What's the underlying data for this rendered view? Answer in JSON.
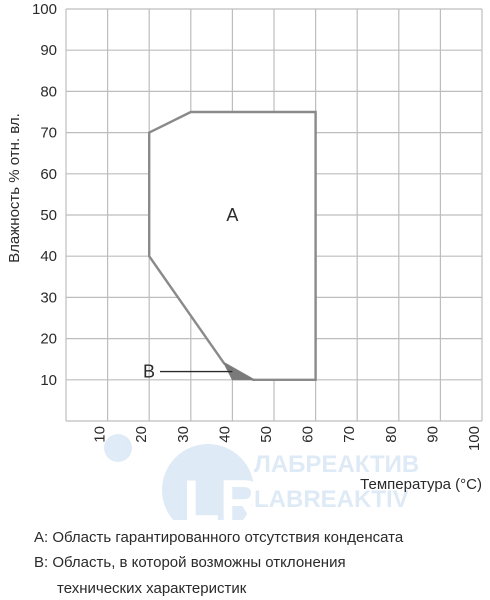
{
  "chart_data": {
    "type": "area",
    "xlabel": "Температура (°C)",
    "ylabel": "Влажность % отн. вл.",
    "xlim": [
      0,
      100
    ],
    "ylim": [
      0,
      100
    ],
    "x_ticks": [
      "10",
      "20",
      "30",
      "40",
      "50",
      "60",
      "70",
      "80",
      "90",
      "100"
    ],
    "y_ticks": [
      "10",
      "20",
      "30",
      "40",
      "50",
      "60",
      "70",
      "80",
      "90",
      "100"
    ],
    "grid": true,
    "regions": [
      {
        "name": "A",
        "points": [
          [
            20,
            70
          ],
          [
            30,
            75
          ],
          [
            60,
            75
          ],
          [
            60,
            10
          ],
          [
            45,
            10
          ],
          [
            38,
            14
          ],
          [
            20,
            40
          ]
        ]
      },
      {
        "name": "B",
        "points": [
          [
            38,
            14
          ],
          [
            45,
            10
          ],
          [
            40,
            10
          ]
        ]
      }
    ],
    "annotations": [
      "A",
      "B"
    ],
    "colors": {
      "grid": "#bdbdbd",
      "outline": "#8a8a8a",
      "region_b": "#7a7a7a"
    }
  },
  "watermark": "ЛАБРЕАКТИВ LABREAKTIV",
  "notes": {
    "a": "А: Область гарантированного отсутствия конденсата",
    "b_line1": "В: Область, в которой возможны отклонения",
    "b_line2": "технических характеристик"
  }
}
